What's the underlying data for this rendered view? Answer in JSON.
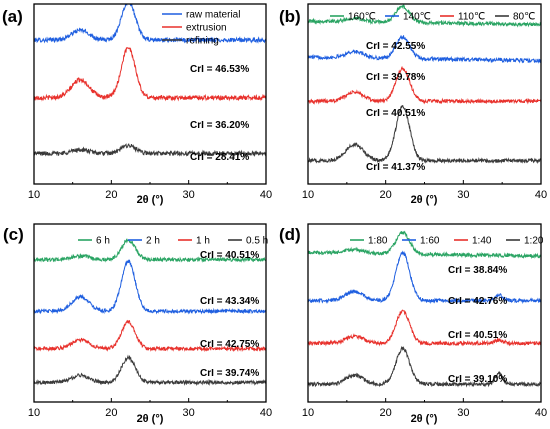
{
  "chart_data": [
    {
      "type": "line",
      "panel_label": "(a)",
      "xlabel": "2θ (°)",
      "ylabel": "",
      "xlim": [
        10,
        40
      ],
      "xticks": [
        10,
        20,
        30,
        40
      ],
      "legend_position": "top-right",
      "legend_layout": "vertical",
      "series": [
        {
          "name": "raw material",
          "color": "#1f5fe0",
          "baseline": 0.8,
          "peak16": 0.055,
          "peak22": 0.215,
          "peak345": 0.0,
          "tail": 0.0,
          "noise": 0.012
        },
        {
          "name": "extrusion",
          "color": "#e8312c",
          "baseline": 0.48,
          "peak16": 0.1,
          "peak22": 0.28,
          "peak345": 0.0,
          "tail": 0.0,
          "noise": 0.012
        },
        {
          "name": "refining",
          "color": "#3a3a3a",
          "baseline": 0.17,
          "peak16": 0.02,
          "peak22": 0.045,
          "peak345": 0.0,
          "tail": 0.0,
          "noise": 0.012
        }
      ],
      "annotations": [
        "CrI = 46.53%",
        "CrI = 36.20%",
        "CrI = 28.41%"
      ]
    },
    {
      "type": "line",
      "panel_label": "(b)",
      "xlabel": "2θ (°)",
      "ylabel": "",
      "xlim": [
        10,
        40
      ],
      "xticks": [
        10,
        20,
        30,
        40
      ],
      "legend_position": "top-right",
      "legend_layout": "horizontal",
      "series": [
        {
          "name": "160℃",
          "color": "#2aa463",
          "baseline": 0.905,
          "peak16": 0.02,
          "peak22": 0.09,
          "peak345": 0.0,
          "tail": -0.02,
          "noise": 0.01
        },
        {
          "name": "140℃",
          "color": "#1f5fe0",
          "baseline": 0.705,
          "peak16": 0.035,
          "peak22": 0.12,
          "peak345": 0.0,
          "tail": -0.02,
          "noise": 0.01
        },
        {
          "name": "110℃",
          "color": "#e8312c",
          "baseline": 0.46,
          "peak16": 0.05,
          "peak22": 0.18,
          "peak345": 0.0,
          "tail": 0.0,
          "noise": 0.01
        },
        {
          "name": "80℃",
          "color": "#3a3a3a",
          "baseline": 0.13,
          "peak16": 0.09,
          "peak22": 0.3,
          "peak345": 0.0,
          "tail": 0.0,
          "noise": 0.01
        }
      ],
      "annotations": [
        "CrI = 42.55%",
        "CrI = 39.78%",
        "CrI = 40.51%",
        "CrI = 41.37%"
      ]
    },
    {
      "type": "line",
      "panel_label": "(c)",
      "xlabel": "2θ (°)",
      "ylabel": "",
      "xlim": [
        10,
        40
      ],
      "xticks": [
        10,
        20,
        30,
        40
      ],
      "legend_position": "top-right",
      "legend_layout": "horizontal",
      "series": [
        {
          "name": "6 h",
          "color": "#2aa463",
          "baseline": 0.8,
          "peak16": 0.02,
          "peak22": 0.11,
          "peak345": 0.0,
          "tail": 0.0,
          "noise": 0.01
        },
        {
          "name": "2 h",
          "color": "#1f5fe0",
          "baseline": 0.51,
          "peak16": 0.08,
          "peak22": 0.28,
          "peak345": 0.0,
          "tail": 0.0,
          "noise": 0.01
        },
        {
          "name": "1 h",
          "color": "#e8312c",
          "baseline": 0.3,
          "peak16": 0.05,
          "peak22": 0.15,
          "peak345": 0.0,
          "tail": 0.0,
          "noise": 0.01
        },
        {
          "name": "0.5 h",
          "color": "#3a3a3a",
          "baseline": 0.11,
          "peak16": 0.04,
          "peak22": 0.14,
          "peak345": 0.0,
          "tail": 0.0,
          "noise": 0.01
        }
      ],
      "annotations": [
        "CrI = 40.51%",
        "CrI = 43.34%",
        "CrI = 42.75%",
        "CrI = 39.74%"
      ]
    },
    {
      "type": "line",
      "panel_label": "(d)",
      "xlabel": "2θ (°)",
      "ylabel": "",
      "xlim": [
        10,
        40
      ],
      "xticks": [
        10,
        20,
        30,
        40
      ],
      "legend_position": "top-right",
      "legend_layout": "horizontal",
      "series": [
        {
          "name": "1:80",
          "color": "#2aa463",
          "baseline": 0.84,
          "peak16": 0.02,
          "peak22": 0.12,
          "peak345": 0.0,
          "tail": -0.02,
          "noise": 0.01
        },
        {
          "name": "1:60",
          "color": "#1f5fe0",
          "baseline": 0.57,
          "peak16": 0.05,
          "peak22": 0.27,
          "peak345": 0.03,
          "tail": 0.0,
          "noise": 0.01
        },
        {
          "name": "1:40",
          "color": "#e8312c",
          "baseline": 0.33,
          "peak16": 0.04,
          "peak22": 0.18,
          "peak345": 0.02,
          "tail": 0.0,
          "noise": 0.01
        },
        {
          "name": "1:20",
          "color": "#3a3a3a",
          "baseline": 0.1,
          "peak16": 0.05,
          "peak22": 0.2,
          "peak345": 0.06,
          "tail": 0.0,
          "noise": 0.01
        }
      ],
      "annotations": [
        "CrI = 38.84%",
        "CrI = 42.76%",
        "CrI = 40.51%",
        "CrI = 39.10%"
      ]
    }
  ]
}
